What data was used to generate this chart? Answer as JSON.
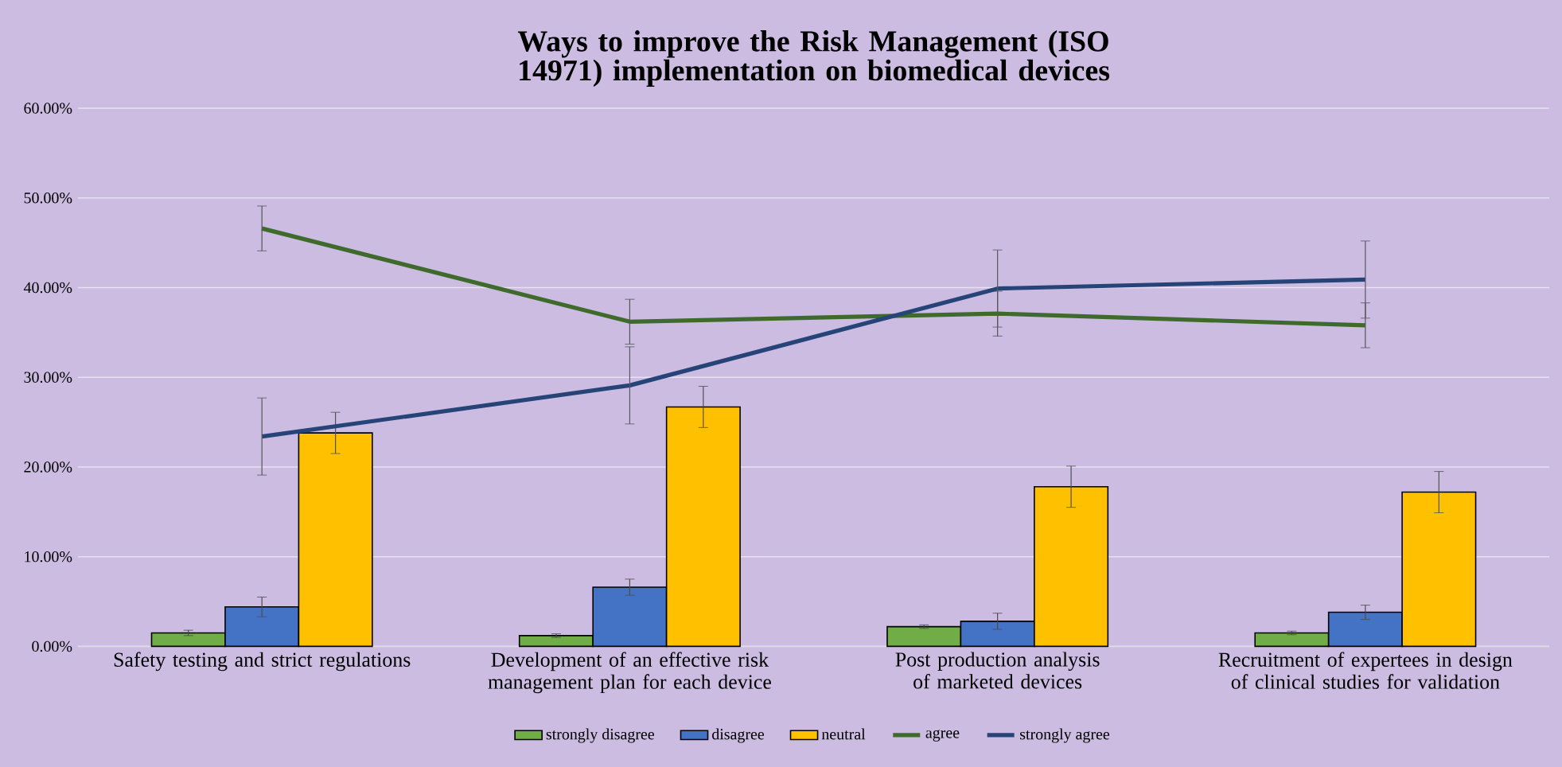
{
  "chart_data": {
    "type": "bar",
    "title": "Ways to improve the Risk Management (ISO 14971) implementation on biomedical devices",
    "categories": [
      "Safety testing and strict regulations",
      "Development of an effective risk management plan for each device",
      "Post production analysis of marketed devices",
      "Recruitment of expertees in design of clinical studies for validation"
    ],
    "series": [
      {
        "name": "strongly disagree",
        "color": "#70ad47",
        "values": [
          1.5,
          1.2,
          2.2,
          1.5
        ],
        "errors": [
          0.3,
          0.2,
          0.2,
          0.2
        ]
      },
      {
        "name": "disagree",
        "color": "#4472c4",
        "values": [
          4.4,
          6.6,
          2.8,
          3.8
        ],
        "errors": [
          1.1,
          0.9,
          0.9,
          0.8
        ]
      },
      {
        "name": "neutral",
        "color": "#ffc000",
        "values": [
          23.8,
          26.7,
          17.8,
          17.2
        ],
        "errors": [
          2.3,
          2.3,
          2.3,
          2.3
        ]
      },
      {
        "name": "agree",
        "type": "line",
        "color": "#3e6b2b",
        "values": [
          46.6,
          36.2,
          37.1,
          35.8
        ],
        "errors": [
          2.5,
          2.5,
          2.5,
          2.5
        ]
      },
      {
        "name": "strongly agree",
        "type": "line",
        "color": "#264478",
        "values": [
          23.4,
          29.1,
          39.9,
          40.9
        ],
        "errors": [
          4.3,
          4.3,
          4.3,
          4.3
        ]
      }
    ],
    "ylim": [
      0,
      60
    ],
    "yticks": [
      {
        "value": 0,
        "label": "0.00%"
      },
      {
        "value": 10,
        "label": "10.00%"
      },
      {
        "value": 20,
        "label": "20.00%"
      },
      {
        "value": 30,
        "label": "30.00%"
      },
      {
        "value": 40,
        "label": "40.00%"
      },
      {
        "value": 50,
        "label": "50.00%"
      },
      {
        "value": 60,
        "label": "60.00%"
      }
    ],
    "grid": "y",
    "legend": "bottom",
    "marker": "none",
    "line_style": "solid"
  }
}
